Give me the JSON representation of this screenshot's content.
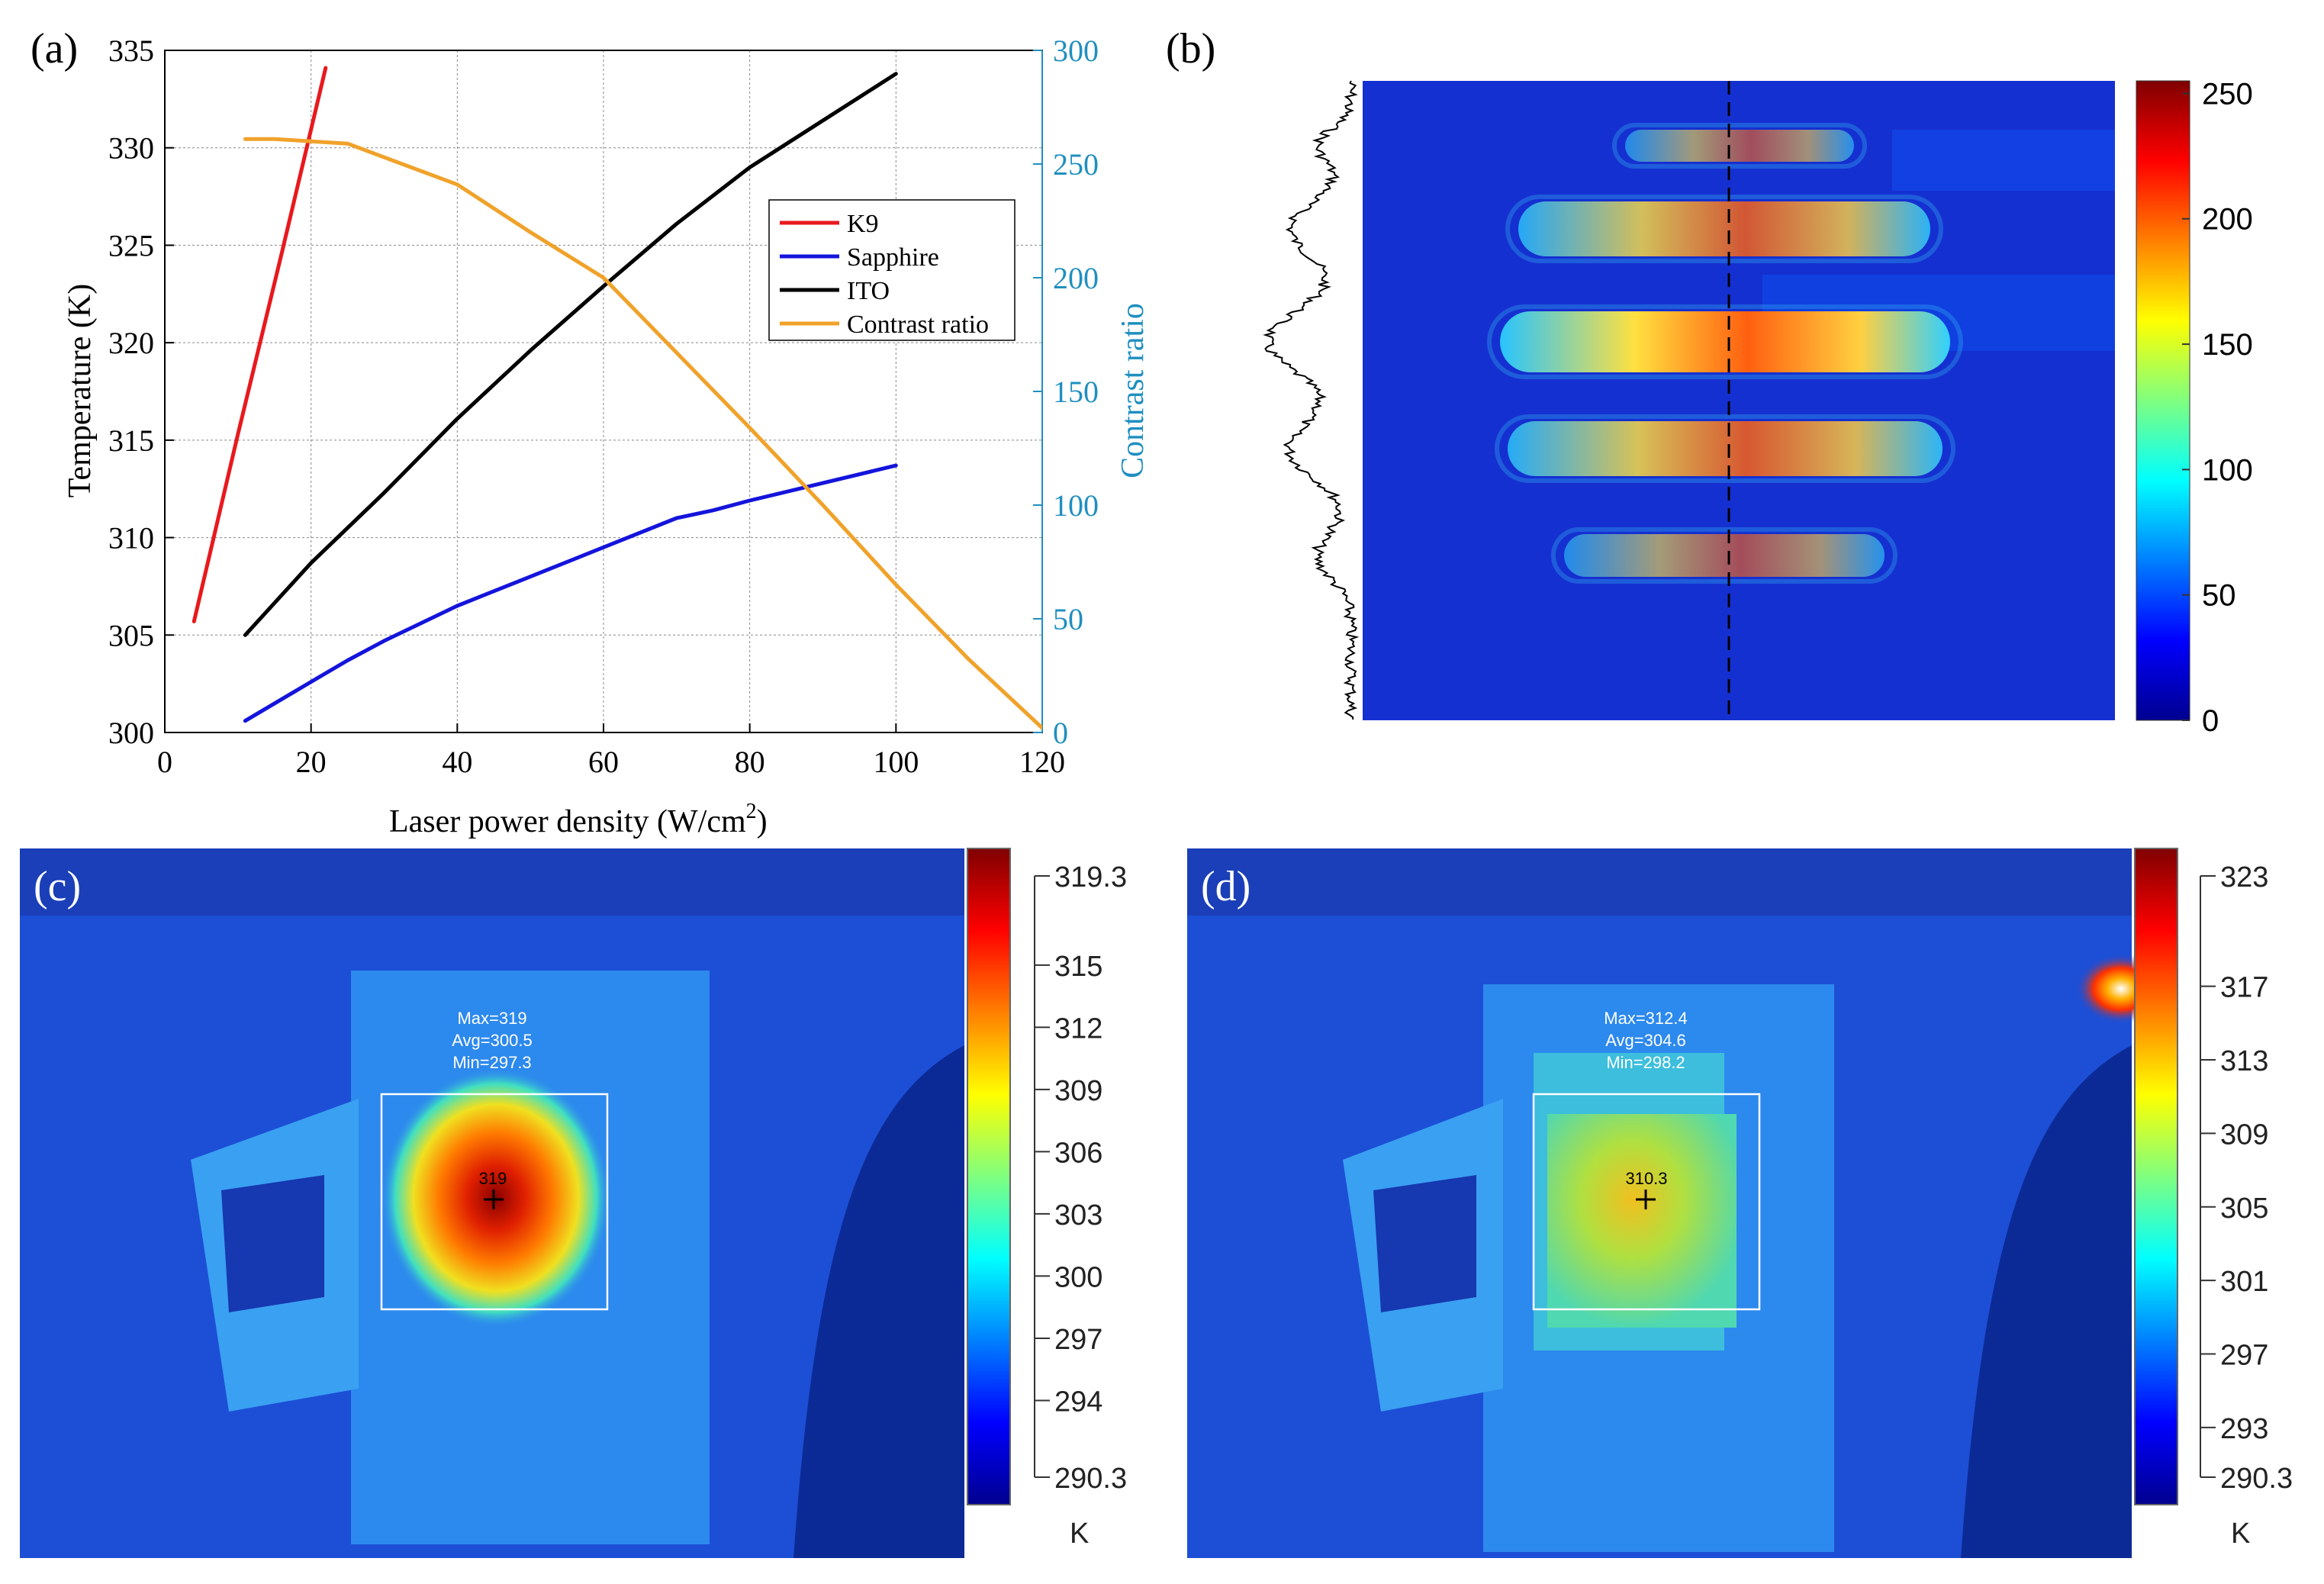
{
  "panels": {
    "a": {
      "label": "(a)",
      "chart_data": {
        "type": "line",
        "xlabel": "Laser power density (W/cm",
        "xlabel_sup": "2",
        "xlabel_close": ")",
        "ylabel": "Temperature (K)",
        "ylabel_right": "Contrast ratio",
        "xlim": [
          0,
          120
        ],
        "ylim": [
          300,
          335
        ],
        "ylim_right": [
          0,
          300
        ],
        "xticks": [
          "0",
          "20",
          "40",
          "60",
          "80",
          "100",
          "120"
        ],
        "yticks": [
          "300",
          "305",
          "310",
          "315",
          "320",
          "325",
          "330",
          "335"
        ],
        "yticks_right": [
          "0",
          "50",
          "100",
          "150",
          "200",
          "250",
          "300"
        ],
        "grid": true,
        "legend_position": "top-right",
        "series": [
          {
            "name": "K9",
            "axis": "left",
            "color": "#e8191e",
            "x": [
              4,
              10,
              16,
              22
            ],
            "y": [
              305.7,
              315.3,
              324.6,
              334.1
            ]
          },
          {
            "name": "Sapphire",
            "axis": "left",
            "color": "#1414dc",
            "x": [
              11,
              20,
              25,
              30,
              40,
              50,
              60,
              70,
              75,
              80,
              90,
              100
            ],
            "y": [
              300.6,
              302.6,
              303.7,
              304.7,
              306.5,
              308.0,
              309.5,
              311.0,
              311.4,
              311.9,
              312.8,
              313.7
            ]
          },
          {
            "name": "ITO",
            "axis": "left",
            "color": "#000000",
            "x": [
              11,
              20,
              25,
              30,
              40,
              50,
              60,
              70,
              80,
              90,
              100
            ],
            "y": [
              305.0,
              308.7,
              310.5,
              312.3,
              316.1,
              319.6,
              322.9,
              326.1,
              329.0,
              331.4,
              333.8
            ]
          },
          {
            "name": "Contrast ratio",
            "axis": "right",
            "color": "#f0a22a",
            "x": [
              11,
              15,
              20,
              25,
              30,
              40,
              50,
              60,
              70,
              80,
              90,
              100,
              110,
              120
            ],
            "y": [
              261,
              261,
              260,
              259,
              253,
              241,
              220,
              200,
              167,
              134,
              100,
              65,
              32,
              2
            ]
          }
        ]
      }
    },
    "b": {
      "label": "(b)",
      "colorbar_ticks": [
        "0",
        "50",
        "100",
        "150",
        "200",
        "250"
      ],
      "colorbar_range": [
        0,
        255
      ],
      "bright_bands": [
        {
          "name": "band-1",
          "level": 80
        },
        {
          "name": "band-2",
          "level": 150
        },
        {
          "name": "band-3",
          "level": 210
        },
        {
          "name": "band-4",
          "level": 155
        },
        {
          "name": "band-5",
          "level": 85
        }
      ]
    },
    "c": {
      "label": "(c)",
      "stats": {
        "max": "Max=319",
        "avg": "Avg=300.5",
        "min": "Min=297.3"
      },
      "spot_value": "319",
      "scale_ticks": [
        "319.3",
        "315",
        "312",
        "309",
        "306",
        "303",
        "300",
        "297",
        "294",
        "290.3"
      ],
      "unit": "K"
    },
    "d": {
      "label": "(d)",
      "stats": {
        "max": "Max=312.4",
        "avg": "Avg=304.6",
        "min": "Min=298.2"
      },
      "spot_value": "310.3",
      "scale_ticks": [
        "323",
        "317",
        "313",
        "309",
        "305",
        "301",
        "297",
        "293",
        "290.3"
      ],
      "unit": "K"
    }
  },
  "colors": {
    "axis_right": "#1f8fc0",
    "grid": "#888888",
    "thermal_bg": "#1c4fd6"
  }
}
